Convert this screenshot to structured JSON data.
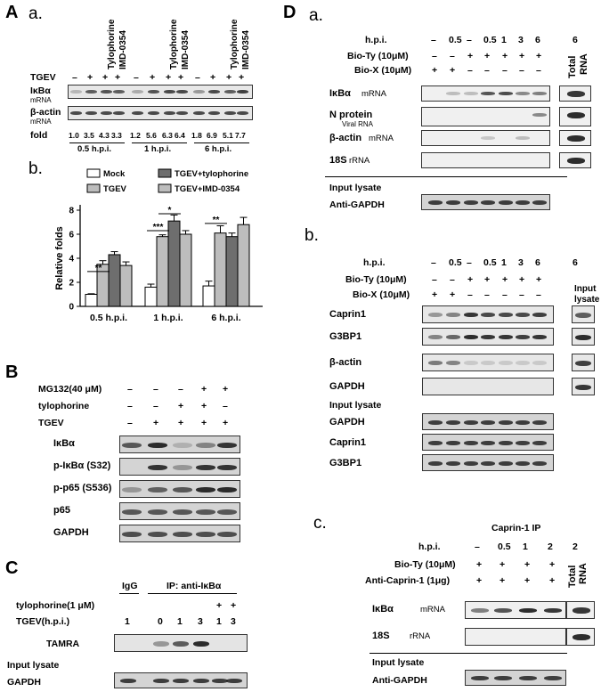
{
  "panel_labels": {
    "A": "A",
    "a": "a.",
    "b": "b.",
    "B": "B",
    "C": "C",
    "D": "D",
    "Da": "a.",
    "Db": "b.",
    "Dc": "c."
  },
  "Aa": {
    "tgev_label": "TGEV",
    "signs": [
      "–",
      "+",
      "+",
      "+",
      "–",
      "+",
      "+",
      "+",
      "–",
      "+",
      "+",
      "+"
    ],
    "drug_labels": [
      "Tylophorine",
      "IMD-0354"
    ],
    "ikba": "IκBα",
    "mrna": "mRNA",
    "bactin": "β-actin",
    "fold_label": "fold",
    "folds": [
      "1.0",
      "3.5",
      "4.3",
      "3.3",
      "1.2",
      "5.6",
      "6.3",
      "6.4",
      "1.8",
      "6.9",
      "5.1",
      "7.7"
    ],
    "times": [
      "0.5 h.p.i.",
      "1 h.p.i.",
      "6 h.p.i."
    ]
  },
  "Ab": {
    "legend": [
      "Mock",
      "TGEV",
      "TGEV+tylophorine",
      "TGEV+IMD-0354"
    ],
    "ylabel": "Relative folds",
    "stars": [
      "**",
      "***",
      "*",
      "**"
    ]
  },
  "chart_data": {
    "type": "bar",
    "categories": [
      "0.5 h.p.i.",
      "1 h.p.i.",
      "6 h.p.i."
    ],
    "series": [
      {
        "name": "Mock",
        "values": [
          1.0,
          1.6,
          1.7
        ],
        "errors": [
          0.05,
          0.25,
          0.4
        ]
      },
      {
        "name": "TGEV",
        "values": [
          3.5,
          5.8,
          6.1
        ],
        "errors": [
          0.3,
          0.15,
          0.6
        ]
      },
      {
        "name": "TGEV+tylophorine",
        "values": [
          4.3,
          7.1,
          5.8
        ],
        "errors": [
          0.25,
          0.5,
          0.3
        ]
      },
      {
        "name": "TGEV+IMD-0354",
        "values": [
          3.4,
          6.0,
          6.8
        ],
        "errors": [
          0.3,
          0.3,
          0.6
        ]
      }
    ],
    "yticks": [
      0,
      2,
      4,
      6,
      8
    ],
    "ylim": [
      0,
      8
    ],
    "ylabel": "Relative folds",
    "colors": [
      "#ffffff",
      "#bdbdbd",
      "#6e6e6e",
      "#bdbdbd"
    ]
  },
  "B": {
    "rows": [
      {
        "label": "MG132(40 μM)",
        "signs": [
          "–",
          "–",
          "–",
          "+",
          "+"
        ]
      },
      {
        "label": "tylophorine",
        "signs": [
          "–",
          "–",
          "+",
          "+",
          "–"
        ]
      },
      {
        "label": "TGEV",
        "signs": [
          "–",
          "+",
          "+",
          "+",
          "+"
        ]
      }
    ],
    "blots": [
      "IκBα",
      "p-IκBα (S32)",
      "p-p65 (S536)",
      "p65",
      "GAPDH"
    ]
  },
  "C": {
    "igg": "IgG",
    "ip": "IP: anti-IκBα",
    "rows": [
      {
        "label": "tylophorine(1 μM)",
        "signs": [
          "",
          "",
          "",
          "",
          "+",
          "+"
        ]
      },
      {
        "label": "TGEV(h.p.i.)",
        "signs": [
          "1",
          "0",
          "1",
          "3",
          "1",
          "3"
        ]
      }
    ],
    "tamra": "TAMRA",
    "input": "Input lysate",
    "gapdh": "GAPDH"
  },
  "Da": {
    "hpi_label": "h.p.i.",
    "hpi": [
      "–",
      "0.5",
      "–",
      "0.5",
      "1",
      "3",
      "6",
      "6"
    ],
    "bioty": "Bio-Ty (10μM)",
    "biox": "Bio-X (10μM)",
    "bioty_signs": [
      "–",
      "–",
      "+",
      "+",
      "+",
      "+",
      "+"
    ],
    "biox_signs": [
      "+",
      "+",
      "–",
      "–",
      "–",
      "–",
      "–"
    ],
    "total": "Total",
    "rna": "RNA",
    "ikba": "IκBα",
    "mrna": "mRNA",
    "nprot": "N protein",
    "viral": "Viral RNA",
    "bactin": "β-actin",
    "bmrna": "mRNA",
    "s18": "18S",
    "rrna": "rRNA",
    "input": "Input lysate",
    "anti": "Anti-GAPDH"
  },
  "Db": {
    "hpi_label": "h.p.i.",
    "hpi": [
      "–",
      "0.5",
      "–",
      "0.5",
      "1",
      "3",
      "6",
      "6"
    ],
    "bioty": "Bio-Ty (10μM)",
    "biox": "Bio-X (10μM)",
    "bioty_signs": [
      "–",
      "–",
      "+",
      "+",
      "+",
      "+",
      "+"
    ],
    "biox_signs": [
      "+",
      "+",
      "–",
      "–",
      "–",
      "–",
      "–"
    ],
    "input1": "Input",
    "input2": "lysate",
    "blots": [
      "Caprin1",
      "G3BP1",
      "β-actin",
      "GAPDH"
    ],
    "input_lysate": "Input lysate",
    "inputs": [
      "GAPDH",
      "Caprin1",
      "G3BP1"
    ]
  },
  "Dc": {
    "title": "Caprin-1 IP",
    "hpi_label": "h.p.i.",
    "hpi": [
      "–",
      "0.5",
      "1",
      "2",
      "2"
    ],
    "bioty": "Bio-Ty (10μM)",
    "anti_cap": "Anti-Caprin-1 (1μg)",
    "signs": [
      "+",
      "+",
      "+",
      "+"
    ],
    "total": "Total",
    "rna": "RNA",
    "ikba": "IκBα",
    "mrna": "mRNA",
    "s18": "18S",
    "rrna": "rRNA",
    "input": "Input lysate",
    "anti": "Anti-GAPDH"
  }
}
